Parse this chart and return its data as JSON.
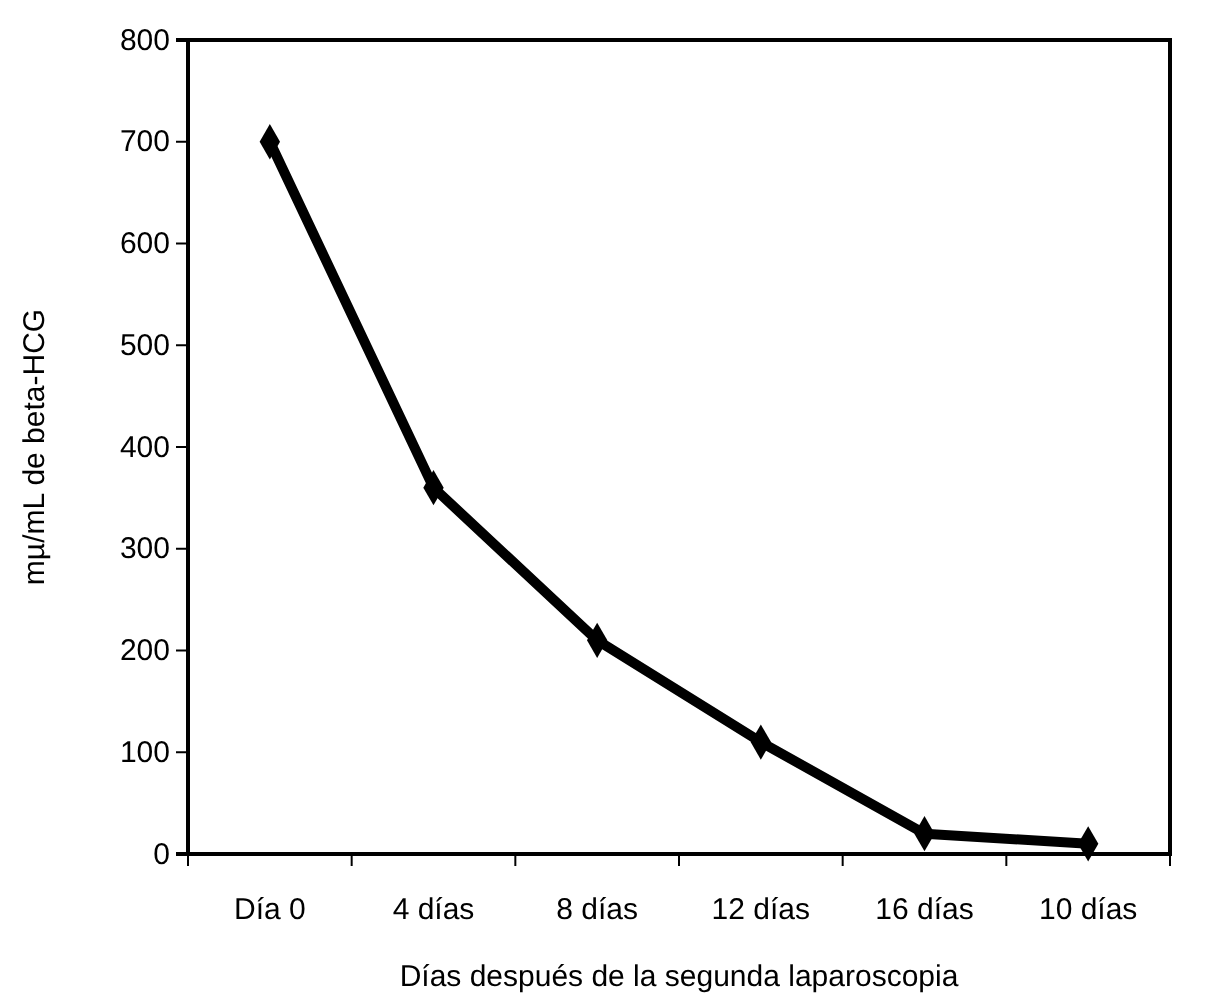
{
  "chart_data": {
    "type": "line",
    "xlabel": "Días después de la segunda laparoscopia",
    "ylabel": "mµ/mL de beta-HCG",
    "categories": [
      "Día 0",
      "4 días",
      "8 días",
      "12 días",
      "16 días",
      "10 días"
    ],
    "series": [
      {
        "color": "#000000",
        "values": [
          700,
          360,
          210,
          110,
          20,
          10
        ]
      }
    ],
    "ylim": [
      0,
      800
    ],
    "yticks": [
      0,
      100,
      200,
      300,
      400,
      500,
      600,
      700,
      800
    ],
    "marker": "diamond",
    "line_style": "solid"
  }
}
